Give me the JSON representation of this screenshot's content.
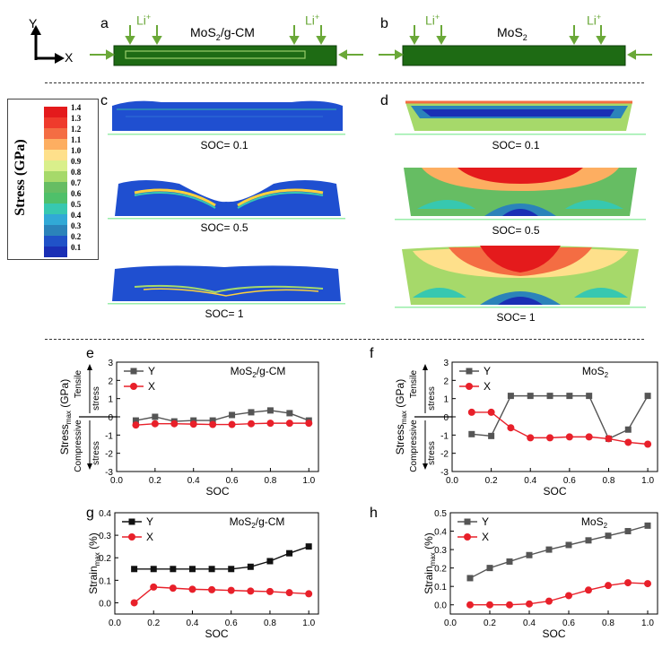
{
  "header": {
    "axis_y": "Y",
    "axis_x": "X",
    "panel_a": "a",
    "panel_b": "b",
    "title_a_main": "MoS",
    "title_a_sub": "2",
    "title_a_rest": "/g-CM",
    "title_b_main": "MoS",
    "title_b_sub": "2",
    "li_main": "Li",
    "li_sup": "+"
  },
  "colorbar": {
    "title": "Stress (GPa)",
    "ticks": [
      "1.4",
      "1.3",
      "1.2",
      "1.1",
      "1.0",
      "0.9",
      "0.8",
      "0.7",
      "0.6",
      "0.5",
      "0.4",
      "0.3",
      "0.2",
      "0.1"
    ],
    "colors": [
      "#e41a1c",
      "#ef3b2c",
      "#f46d43",
      "#fdae61",
      "#fee08b",
      "#d9ef8b",
      "#a6d96a",
      "#66bd63",
      "#4fc06a",
      "#37c8b0",
      "#31a9d6",
      "#2b83ba",
      "#2052c8",
      "#1a2fb5"
    ]
  },
  "simulations": {
    "panel_c": "c",
    "panel_d": "d",
    "labels": [
      "SOC= 0.1",
      "SOC= 0.5",
      "SOC= 1"
    ]
  },
  "charts": {
    "e": {
      "panel": "e",
      "title_main": "MoS",
      "title_sub": "2",
      "title_rest": "/g-CM"
    },
    "f": {
      "panel": "f",
      "title_main": "MoS",
      "title_sub": "2",
      "title_rest": ""
    },
    "g": {
      "panel": "g",
      "title_main": "MoS",
      "title_sub": "2",
      "title_rest": "/g-CM"
    },
    "h": {
      "panel": "h",
      "title_main": "MoS",
      "title_sub": "2",
      "title_rest": ""
    },
    "stress_ylabel_main": "Stress",
    "stress_ylabel_sub": "max",
    "stress_ylabel_unit": " (GPa)",
    "strain_ylabel_main": "Strain",
    "strain_ylabel_sub": "max",
    "strain_ylabel_unit": " (%)",
    "xlabel": "SOC",
    "tensile": "Tensile stress",
    "compressive": "Compressive stress"
  },
  "chart_data": [
    {
      "id": "e",
      "type": "line",
      "xlabel": "SOC",
      "ylabel": "Stress max (GPa)",
      "xlim": [
        0,
        1.05
      ],
      "ylim": [
        -3,
        3
      ],
      "xticks": [
        "0.0",
        "0.2",
        "0.4",
        "0.6",
        "0.8",
        "1.0"
      ],
      "yticks": [
        "-3",
        "-2",
        "-1",
        "0",
        "1",
        "2",
        "3"
      ],
      "x": [
        0.1,
        0.2,
        0.3,
        0.4,
        0.5,
        0.6,
        0.7,
        0.8,
        0.9,
        1.0
      ],
      "series": [
        {
          "name": "Y",
          "color": "#555555",
          "marker": "square",
          "values": [
            -0.2,
            0.0,
            -0.25,
            -0.2,
            -0.2,
            0.1,
            0.25,
            0.35,
            0.2,
            -0.2
          ]
        },
        {
          "name": "X",
          "color": "#e8202a",
          "marker": "circle",
          "values": [
            -0.45,
            -0.38,
            -0.38,
            -0.4,
            -0.42,
            -0.42,
            -0.38,
            -0.35,
            -0.35,
            -0.35
          ]
        }
      ]
    },
    {
      "id": "f",
      "type": "line",
      "xlabel": "SOC",
      "ylabel": "Stress max (GPa)",
      "xlim": [
        0,
        1.05
      ],
      "ylim": [
        -3,
        3
      ],
      "xticks": [
        "0.0",
        "0.2",
        "0.4",
        "0.6",
        "0.8",
        "1.0"
      ],
      "yticks": [
        "-3",
        "-2",
        "-1",
        "0",
        "1",
        "2",
        "3"
      ],
      "x": [
        0.1,
        0.2,
        0.3,
        0.4,
        0.5,
        0.6,
        0.7,
        0.8,
        0.9,
        1.0
      ],
      "series": [
        {
          "name": "Y",
          "color": "#555555",
          "marker": "square",
          "values": [
            -0.95,
            -1.05,
            1.15,
            1.15,
            1.15,
            1.15,
            1.15,
            -1.2,
            -0.7,
            1.15
          ]
        },
        {
          "name": "X",
          "color": "#e8202a",
          "marker": "circle",
          "values": [
            0.25,
            0.25,
            -0.6,
            -1.15,
            -1.15,
            -1.1,
            -1.1,
            -1.2,
            -1.4,
            -1.5
          ]
        }
      ]
    },
    {
      "id": "g",
      "type": "line",
      "xlabel": "SOC",
      "ylabel": "Strain max (%)",
      "xlim": [
        0,
        1.05
      ],
      "ylim": [
        -0.05,
        0.4
      ],
      "xticks": [
        "0.0",
        "0.2",
        "0.4",
        "0.6",
        "0.8",
        "1.0"
      ],
      "yticks": [
        "0.0",
        "0.1",
        "0.2",
        "0.3",
        "0.4"
      ],
      "x": [
        0.1,
        0.2,
        0.3,
        0.4,
        0.5,
        0.6,
        0.7,
        0.8,
        0.9,
        1.0
      ],
      "series": [
        {
          "name": "Y",
          "color": "#111111",
          "marker": "square",
          "values": [
            0.15,
            0.15,
            0.15,
            0.15,
            0.15,
            0.15,
            0.16,
            0.185,
            0.22,
            0.25
          ]
        },
        {
          "name": "X",
          "color": "#e8202a",
          "marker": "circle",
          "values": [
            0.0,
            0.07,
            0.065,
            0.06,
            0.058,
            0.055,
            0.052,
            0.05,
            0.045,
            0.04
          ]
        }
      ]
    },
    {
      "id": "h",
      "type": "line",
      "xlabel": "SOC",
      "ylabel": "Strain max (%)",
      "xlim": [
        0,
        1.05
      ],
      "ylim": [
        -0.05,
        0.5
      ],
      "xticks": [
        "0.0",
        "0.2",
        "0.4",
        "0.6",
        "0.8",
        "1.0"
      ],
      "yticks": [
        "0.0",
        "0.1",
        "0.2",
        "0.3",
        "0.4",
        "0.5"
      ],
      "x": [
        0.1,
        0.2,
        0.3,
        0.4,
        0.5,
        0.6,
        0.7,
        0.8,
        0.9,
        1.0
      ],
      "series": [
        {
          "name": "Y",
          "color": "#555555",
          "marker": "square",
          "values": [
            0.145,
            0.2,
            0.235,
            0.27,
            0.3,
            0.325,
            0.35,
            0.375,
            0.4,
            0.43
          ]
        },
        {
          "name": "X",
          "color": "#e8202a",
          "marker": "circle",
          "values": [
            0.0,
            0.0,
            0.0,
            0.005,
            0.02,
            0.05,
            0.08,
            0.105,
            0.12,
            0.115
          ]
        }
      ]
    }
  ]
}
